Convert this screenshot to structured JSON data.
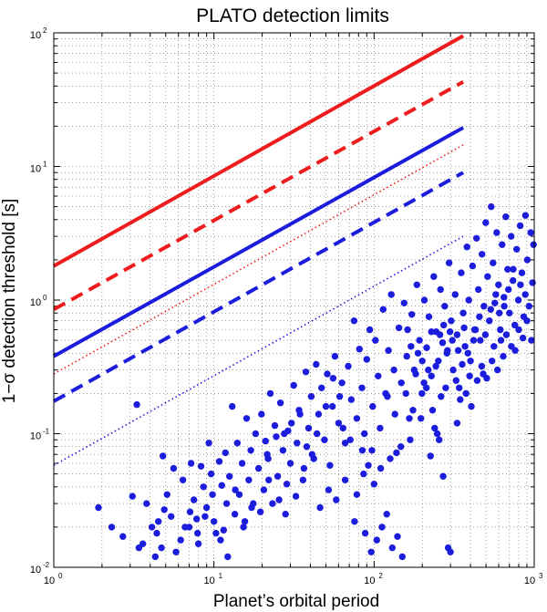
{
  "chart_data": {
    "type": "scatter",
    "title": "PLATO detection limits",
    "xlabel": "Planet’s orbital period",
    "ylabel": "1−σ detection threshold [s]",
    "xscale": "log",
    "yscale": "log",
    "xlim": [
      1,
      1000
    ],
    "ylim": [
      0.01,
      100
    ],
    "grid": true,
    "x_ticks": [
      {
        "base": "10",
        "exp": "0",
        "value": 1
      },
      {
        "base": "10",
        "exp": "1",
        "value": 10
      },
      {
        "base": "10",
        "exp": "2",
        "value": 100
      },
      {
        "base": "10",
        "exp": "3",
        "value": 1000
      }
    ],
    "y_ticks": [
      {
        "base": "10",
        "exp": "-2",
        "value": 0.01
      },
      {
        "base": "10",
        "exp": "-1",
        "value": 0.1
      },
      {
        "base": "10",
        "exp": "0",
        "value": 1
      },
      {
        "base": "10",
        "exp": "1",
        "value": 10
      },
      {
        "base": "10",
        "exp": "2",
        "value": 100
      }
    ],
    "lines": [
      {
        "color": "#ee1c1c",
        "style": "solid",
        "x": [
          1,
          360
        ],
        "y": [
          1.8,
          95
        ]
      },
      {
        "color": "#ee1c1c",
        "style": "dashed",
        "x": [
          1,
          360
        ],
        "y": [
          0.85,
          43
        ]
      },
      {
        "color": "#ee1c1c",
        "style": "dotted",
        "x": [
          1,
          360
        ],
        "y": [
          0.28,
          14.5
        ]
      },
      {
        "color": "#1c1cdd",
        "style": "solid",
        "x": [
          1,
          360
        ],
        "y": [
          0.38,
          19.5
        ]
      },
      {
        "color": "#1c1cdd",
        "style": "dashed",
        "x": [
          1,
          360
        ],
        "y": [
          0.175,
          9
        ]
      },
      {
        "color": "#1c1cdd",
        "style": "dotted",
        "x": [
          1,
          360
        ],
        "y": [
          0.058,
          3
        ]
      }
    ],
    "points_color": "#1c1cdd",
    "points": [
      [
        1.9,
        0.028
      ],
      [
        2.7,
        0.017
      ],
      [
        3.1,
        0.034
      ],
      [
        3.4,
        0.014
      ],
      [
        3.6,
        0.015
      ],
      [
        3.3,
        0.165
      ],
      [
        4.1,
        0.02
      ],
      [
        4.3,
        0.012
      ],
      [
        4.5,
        0.022
      ],
      [
        4.7,
        0.014
      ],
      [
        4.8,
        0.068
      ],
      [
        5.1,
        0.035
      ],
      [
        5.6,
        0.055
      ],
      [
        5.8,
        0.013
      ],
      [
        6.2,
        0.016
      ],
      [
        6.4,
        0.045
      ],
      [
        7.0,
        0.02
      ],
      [
        7.2,
        0.06
      ],
      [
        7.5,
        0.032
      ],
      [
        7.8,
        0.023
      ],
      [
        8.0,
        0.015
      ],
      [
        8.3,
        0.057
      ],
      [
        8.6,
        0.04
      ],
      [
        9.0,
        0.028
      ],
      [
        9.3,
        0.085
      ],
      [
        9.6,
        0.05
      ],
      [
        10.0,
        0.022
      ],
      [
        10.3,
        0.018
      ],
      [
        10.8,
        0.062
      ],
      [
        11.2,
        0.041
      ],
      [
        11.5,
        0.019
      ],
      [
        11.8,
        0.072
      ],
      [
        12.0,
        0.03
      ],
      [
        12.5,
        0.048
      ],
      [
        13.0,
        0.16
      ],
      [
        13.5,
        0.025
      ],
      [
        14.0,
        0.085
      ],
      [
        14.4,
        0.035
      ],
      [
        15.0,
        0.06
      ],
      [
        15.6,
        0.022
      ],
      [
        16.0,
        0.13
      ],
      [
        16.5,
        0.045
      ],
      [
        17.0,
        0.075
      ],
      [
        17.6,
        0.03
      ],
      [
        18.2,
        0.1
      ],
      [
        19.0,
        0.055
      ],
      [
        19.8,
        0.14
      ],
      [
        20.5,
        0.038
      ],
      [
        21.0,
        0.088
      ],
      [
        21.8,
        0.065
      ],
      [
        22.5,
        0.2
      ],
      [
        23.2,
        0.03
      ],
      [
        24.0,
        0.115
      ],
      [
        25.0,
        0.048
      ],
      [
        26.0,
        0.17
      ],
      [
        27.0,
        0.075
      ],
      [
        28.0,
        0.025
      ],
      [
        29.0,
        0.105
      ],
      [
        30.0,
        0.06
      ],
      [
        31.5,
        0.23
      ],
      [
        33.0,
        0.085
      ],
      [
        34.5,
        0.14
      ],
      [
        36.0,
        0.045
      ],
      [
        37.5,
        0.29
      ],
      [
        39.0,
        0.11
      ],
      [
        40.5,
        0.19
      ],
      [
        42.0,
        0.065
      ],
      [
        43.5,
        0.33
      ],
      [
        45.0,
        0.14
      ],
      [
        47.0,
        0.22
      ],
      [
        49.0,
        0.09
      ],
      [
        51.0,
        0.28
      ],
      [
        53.0,
        0.058
      ],
      [
        55.0,
        0.16
      ],
      [
        57.0,
        0.38
      ],
      [
        60.0,
        0.12
      ],
      [
        63.0,
        0.24
      ],
      [
        66.0,
        0.085
      ],
      [
        69.0,
        0.32
      ],
      [
        72.0,
        0.18
      ],
      [
        75.0,
        0.7
      ],
      [
        78.0,
        0.13
      ],
      [
        81.0,
        0.43
      ],
      [
        84.0,
        0.22
      ],
      [
        87.0,
        0.1
      ],
      [
        90.0,
        0.36
      ],
      [
        94.0,
        0.6
      ],
      [
        98.0,
        0.16
      ],
      [
        102.0,
        0.5
      ],
      [
        106.0,
        0.27
      ],
      [
        110.0,
        0.055
      ],
      [
        114.0,
        0.85
      ],
      [
        118.0,
        0.2
      ],
      [
        123.0,
        0.42
      ],
      [
        128.0,
        1.1
      ],
      [
        133.0,
        0.3
      ],
      [
        138.0,
        0.072
      ],
      [
        143.0,
        0.62
      ],
      [
        148.0,
        0.24
      ],
      [
        154.0,
        0.95
      ],
      [
        160.0,
        0.38
      ],
      [
        166.0,
        0.13
      ],
      [
        172.0,
        0.78
      ],
      [
        178.0,
        0.3
      ],
      [
        185.0,
        1.3
      ],
      [
        192.0,
        0.5
      ],
      [
        199.0,
        0.2
      ],
      [
        206.0,
        1.0
      ],
      [
        213.0,
        0.44
      ],
      [
        220.0,
        0.75
      ],
      [
        228.0,
        0.27
      ],
      [
        236.0,
        1.5
      ],
      [
        244.0,
        0.58
      ],
      [
        252.0,
        0.35
      ],
      [
        260.0,
        1.2
      ],
      [
        268.0,
        0.48
      ],
      [
        276.0,
        0.9
      ],
      [
        285.0,
        0.4
      ],
      [
        294.0,
        1.9
      ],
      [
        303.0,
        0.7
      ],
      [
        312.0,
        0.3
      ],
      [
        321.0,
        1.1
      ],
      [
        330.0,
        0.55
      ],
      [
        340.0,
        0.22
      ],
      [
        350.0,
        1.6
      ],
      [
        360.0,
        0.8
      ],
      [
        370.0,
        0.45
      ],
      [
        380.0,
        2.5
      ],
      [
        390.0,
        1.0
      ],
      [
        400.0,
        0.35
      ],
      [
        412.0,
        1.8
      ],
      [
        424.0,
        0.6
      ],
      [
        436.0,
        2.9
      ],
      [
        448.0,
        1.2
      ],
      [
        460.0,
        0.5
      ],
      [
        472.0,
        2.2
      ],
      [
        485.0,
        0.9
      ],
      [
        498.0,
        3.8
      ],
      [
        511.0,
        1.5
      ],
      [
        525.0,
        0.7
      ],
      [
        539.0,
        5.0
      ],
      [
        553.0,
        1.9
      ],
      [
        568.0,
        0.95
      ],
      [
        583.0,
        3.2
      ],
      [
        598.0,
        1.3
      ],
      [
        614.0,
        0.6
      ],
      [
        630.0,
        2.6
      ],
      [
        647.0,
        1.05
      ],
      [
        664.0,
        4.2
      ],
      [
        682.0,
        1.7
      ],
      [
        700.0,
        0.8
      ],
      [
        718.0,
        3.0
      ],
      [
        737.0,
        1.4
      ],
      [
        756.0,
        0.65
      ],
      [
        776.0,
        2.4
      ],
      [
        796.0,
        1.0
      ],
      [
        817.0,
        3.6
      ],
      [
        838.0,
        1.6
      ],
      [
        860.0,
        0.75
      ],
      [
        882.0,
        4.3
      ],
      [
        905.0,
        2.0
      ],
      [
        928.0,
        0.9
      ],
      [
        952.0,
        3.2
      ],
      [
        976.0,
        1.35
      ],
      [
        990.0,
        2.6
      ],
      [
        850.0,
        0.52
      ],
      [
        760.0,
        0.42
      ],
      [
        640.0,
        0.38
      ],
      [
        560.0,
        0.45
      ],
      [
        480.0,
        0.28
      ],
      [
        430.0,
        0.6
      ],
      [
        395.0,
        0.27
      ],
      [
        365.0,
        0.62
      ],
      [
        335.0,
        0.42
      ],
      [
        298.0,
        0.58
      ],
      [
        280.0,
        0.22
      ],
      [
        262.0,
        0.19
      ],
      [
        248.0,
        0.1
      ],
      [
        232.0,
        0.15
      ],
      [
        218.0,
        0.3
      ],
      [
        205.0,
        0.24
      ],
      [
        188.0,
        0.4
      ],
      [
        175.0,
        0.15
      ],
      [
        158.0,
        0.2
      ],
      [
        147.0,
        0.08
      ],
      [
        135.0,
        0.14
      ],
      [
        121.0,
        0.19
      ],
      [
        109.0,
        0.11
      ],
      [
        97.0,
        0.075
      ],
      [
        86.0,
        0.05
      ],
      [
        78.0,
        0.035
      ],
      [
        66.0,
        0.045
      ],
      [
        58.0,
        0.032
      ],
      [
        52.0,
        0.038
      ],
      [
        46.0,
        0.028
      ],
      [
        41.0,
        0.07
      ],
      [
        36.5,
        0.055
      ],
      [
        32.5,
        0.034
      ],
      [
        28.5,
        0.042
      ],
      [
        25.5,
        0.032
      ],
      [
        22.0,
        0.045
      ],
      [
        19.5,
        0.026
      ],
      [
        17.2,
        0.028
      ],
      [
        15.3,
        0.02
      ],
      [
        13.6,
        0.038
      ],
      [
        12.2,
        0.012
      ],
      [
        11.0,
        0.016
      ],
      [
        9.8,
        0.035
      ],
      [
        8.8,
        0.024
      ],
      [
        7.9,
        0.018
      ],
      [
        7.1,
        0.026
      ],
      [
        6.6,
        0.02
      ],
      [
        5.4,
        0.024
      ],
      [
        4.9,
        0.027
      ],
      [
        4.4,
        0.018
      ],
      [
        3.8,
        0.03
      ],
      [
        2.3,
        0.02
      ],
      [
        150.0,
        0.012
      ],
      [
        140.0,
        0.017
      ],
      [
        130.0,
        0.014
      ],
      [
        120.0,
        0.025
      ],
      [
        112.0,
        0.02
      ],
      [
        104.0,
        0.016
      ],
      [
        96.0,
        0.013
      ],
      [
        88.0,
        0.018
      ],
      [
        75.5,
        0.022
      ],
      [
        300.0,
        0.013
      ],
      [
        290.0,
        0.014
      ],
      [
        270.0,
        0.048
      ],
      [
        255.0,
        0.09
      ],
      [
        239.0,
        0.11
      ],
      [
        225.0,
        0.068
      ],
      [
        196.0,
        0.13
      ],
      [
        168.0,
        0.09
      ],
      [
        126.0,
        0.065
      ],
      [
        100.0,
        0.042
      ],
      [
        92.0,
        0.058
      ],
      [
        84.5,
        0.075
      ],
      [
        71.0,
        0.09
      ],
      [
        64.0,
        0.11
      ],
      [
        61.0,
        0.19
      ],
      [
        55.5,
        0.26
      ],
      [
        50.0,
        0.16
      ],
      [
        44.0,
        0.1
      ],
      [
        38.0,
        0.08
      ],
      [
        34.0,
        0.15
      ],
      [
        30.5,
        0.12
      ],
      [
        27.5,
        0.1
      ],
      [
        24.5,
        0.095
      ],
      [
        21.5,
        0.07
      ],
      [
        330.0,
        0.12
      ],
      [
        345.0,
        0.18
      ],
      [
        375.0,
        0.2
      ],
      [
        405.0,
        0.16
      ],
      [
        440.0,
        0.25
      ],
      [
        470.0,
        0.32
      ],
      [
        505.0,
        0.26
      ],
      [
        545.0,
        0.35
      ],
      [
        590.0,
        0.3
      ],
      [
        620.0,
        0.5
      ],
      [
        670.0,
        0.55
      ],
      [
        720.0,
        0.45
      ],
      [
        800.0,
        0.6
      ],
      [
        900.0,
        0.7
      ],
      [
        960.0,
        0.5
      ],
      [
        880.0,
        1.1
      ],
      [
        820.0,
        1.3
      ],
      [
        740.0,
        1.7
      ],
      [
        690.0,
        1.2
      ],
      [
        650.0,
        0.9
      ],
      [
        605.0,
        0.8
      ],
      [
        575.0,
        1.1
      ],
      [
        535.0,
        0.85
      ],
      [
        495.0,
        0.55
      ],
      [
        455.0,
        0.75
      ],
      [
        418.0,
        0.5
      ],
      [
        385.0,
        0.4
      ],
      [
        355.0,
        0.33
      ],
      [
        325.0,
        0.25
      ],
      [
        308.0,
        0.5
      ],
      [
        287.0,
        0.42
      ],
      [
        272.0,
        0.65
      ],
      [
        258.0,
        0.55
      ],
      [
        243.0,
        0.32
      ],
      [
        228.0,
        0.58
      ],
      [
        212.0,
        0.22
      ],
      [
        200.0,
        0.35
      ],
      [
        182.0,
        0.28
      ],
      [
        170.0,
        0.45
      ],
      [
        162.0,
        0.6
      ]
    ]
  }
}
